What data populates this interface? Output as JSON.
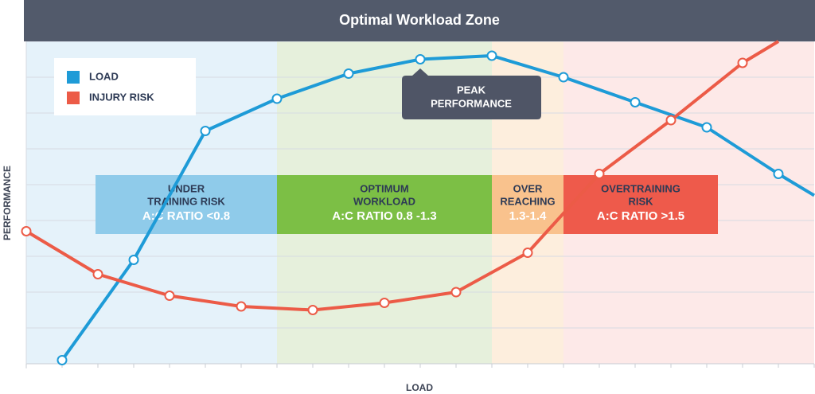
{
  "chart_data": {
    "type": "line",
    "title": "Optimal  Workload Zone",
    "x_label": "LOAD",
    "y_label": "PERFORMANCE",
    "xlim": [
      0,
      11
    ],
    "ylim": [
      0,
      9
    ],
    "yticks": [
      0,
      1,
      2,
      3,
      4,
      5,
      6,
      7,
      8,
      9
    ],
    "grid": true,
    "legend": "upper left",
    "series": [
      {
        "name": "LOAD",
        "color": "#1e9bd7",
        "x": [
          0.5,
          1.5,
          2.5,
          3.5,
          4.5,
          5.5,
          6.5,
          7.5,
          8.5,
          9.5,
          10.5,
          11
        ],
        "values": [
          0.1,
          2.9,
          6.5,
          7.4,
          8.1,
          8.5,
          8.6,
          8.0,
          7.3,
          6.6,
          5.3,
          4.7
        ]
      },
      {
        "name": "INJURY RISK",
        "color": "#ec5b47",
        "x": [
          0,
          1,
          2,
          3,
          4,
          5,
          6,
          7,
          8,
          9,
          10,
          10.5
        ],
        "values": [
          3.7,
          2.5,
          1.9,
          1.6,
          1.5,
          1.7,
          2.0,
          3.1,
          5.3,
          6.8,
          8.4,
          9.0
        ]
      }
    ],
    "zones": [
      {
        "label": [
          "UNDER",
          "TRAINING RISK"
        ],
        "ratio": "A:C RATIO  <0.8",
        "from": 0,
        "to": 3.5,
        "background": "#e5f2fa",
        "color": "#8fcbea"
      },
      {
        "label": [
          "OPTIMUM",
          "WORKLOAD"
        ],
        "ratio": "A:C RATIO  0.8 -1.3",
        "from": 3.5,
        "to": 6.5,
        "background": "#e6f0dc",
        "color": "#7cbf45"
      },
      {
        "label": [
          "OVER",
          "REACHING"
        ],
        "ratio": "1.3-1.4",
        "from": 6.5,
        "to": 7.5,
        "background": "#fdeedd",
        "color": "#f9c28d"
      },
      {
        "label": [
          "OVERTRAINING",
          "RISK"
        ],
        "ratio": "A:C RATIO >1.5",
        "from": 7.5,
        "to": 11,
        "background": "#fde9e8",
        "color": "#ee5a4b"
      }
    ],
    "annotation": [
      "PEAK",
      "PERFORMANCE"
    ]
  }
}
